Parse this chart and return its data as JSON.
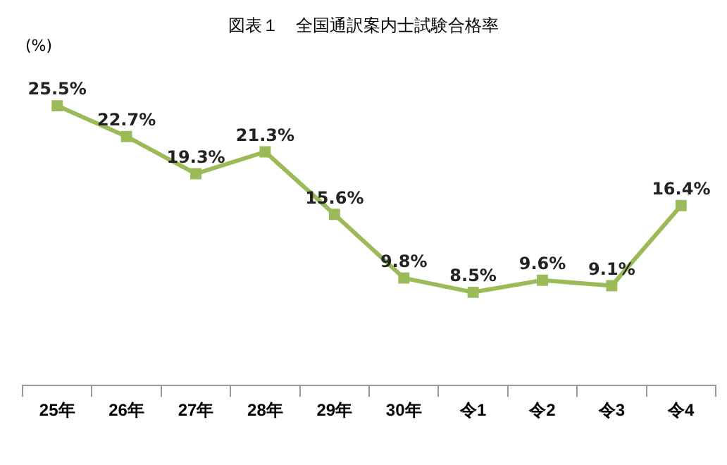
{
  "chart_data": {
    "type": "line",
    "title": "図表１　全国通訳案内士試験合格率",
    "ylabel": "(%)",
    "categories": [
      "25年",
      "26年",
      "27年",
      "28年",
      "29年",
      "30年",
      "令1",
      "令2",
      "令3",
      "令4"
    ],
    "series": [
      {
        "color": "#9bbb59",
        "values": [
          25.5,
          22.7,
          19.3,
          21.3,
          15.6,
          9.8,
          8.5,
          9.6,
          9.1,
          16.4
        ],
        "value_labels": [
          "25.5%",
          "22.7%",
          "19.3%",
          "21.3%",
          "15.6%",
          "9.8%",
          "8.5%",
          "9.6%",
          "9.1%",
          "16.4%"
        ]
      }
    ],
    "tick_labels": "x",
    "legend": false,
    "marker": "square",
    "line_style": "solid"
  }
}
